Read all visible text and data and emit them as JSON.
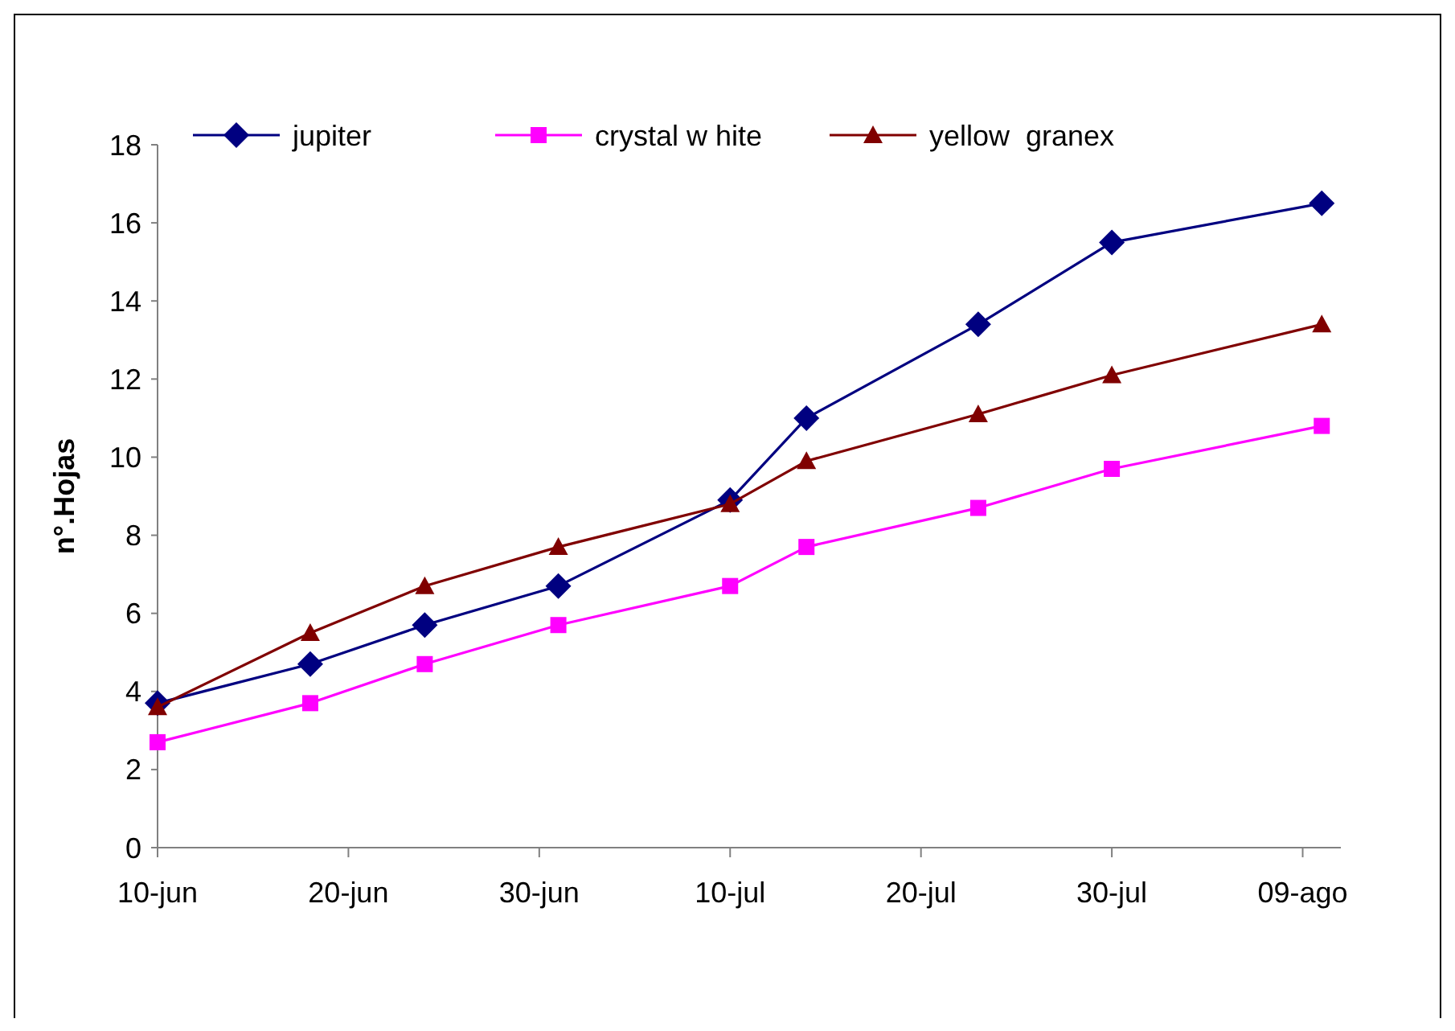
{
  "chart_data": {
    "type": "line",
    "ylabel": "n°.Hojas",
    "x": [
      "--06-10",
      "--06-18",
      "--06-24",
      "--07-01",
      "--07-10",
      "--07-14",
      "--07-23",
      "--07-30",
      "--08-10"
    ],
    "series": [
      {
        "name": "jupiter",
        "color": "#000080",
        "marker": "diamond",
        "values": [
          3.7,
          4.7,
          5.7,
          6.7,
          8.9,
          11,
          13.4,
          15.5,
          16.5
        ]
      },
      {
        "name": "crystal w hite",
        "color": "#ff00ff",
        "marker": "square",
        "values": [
          2.7,
          3.7,
          4.7,
          5.7,
          6.7,
          7.7,
          8.7,
          9.7,
          10.8
        ]
      },
      {
        "name": "yellow  granex",
        "color": "#800000",
        "marker": "triangle",
        "values": [
          3.6,
          5.5,
          6.7,
          7.7,
          8.8,
          9.9,
          11.1,
          12.1,
          13.4
        ]
      }
    ],
    "xlim": [
      "--06-10",
      "--08-11"
    ],
    "xticks": [
      {
        "value": "--06-10",
        "label": "10-jun"
      },
      {
        "value": "--06-20",
        "label": "20-jun"
      },
      {
        "value": "--06-30",
        "label": "30-jun"
      },
      {
        "value": "--07-10",
        "label": "10-jul"
      },
      {
        "value": "--07-20",
        "label": "20-jul"
      },
      {
        "value": "--07-30",
        "label": "30-jul"
      },
      {
        "value": "--08-09",
        "label": "09-ago"
      }
    ],
    "ylim": [
      0,
      18
    ],
    "yticks": [
      0,
      2,
      4,
      6,
      8,
      10,
      12,
      14,
      16,
      18
    ],
    "grid": false,
    "legend": "top",
    "line_style": "solid"
  }
}
